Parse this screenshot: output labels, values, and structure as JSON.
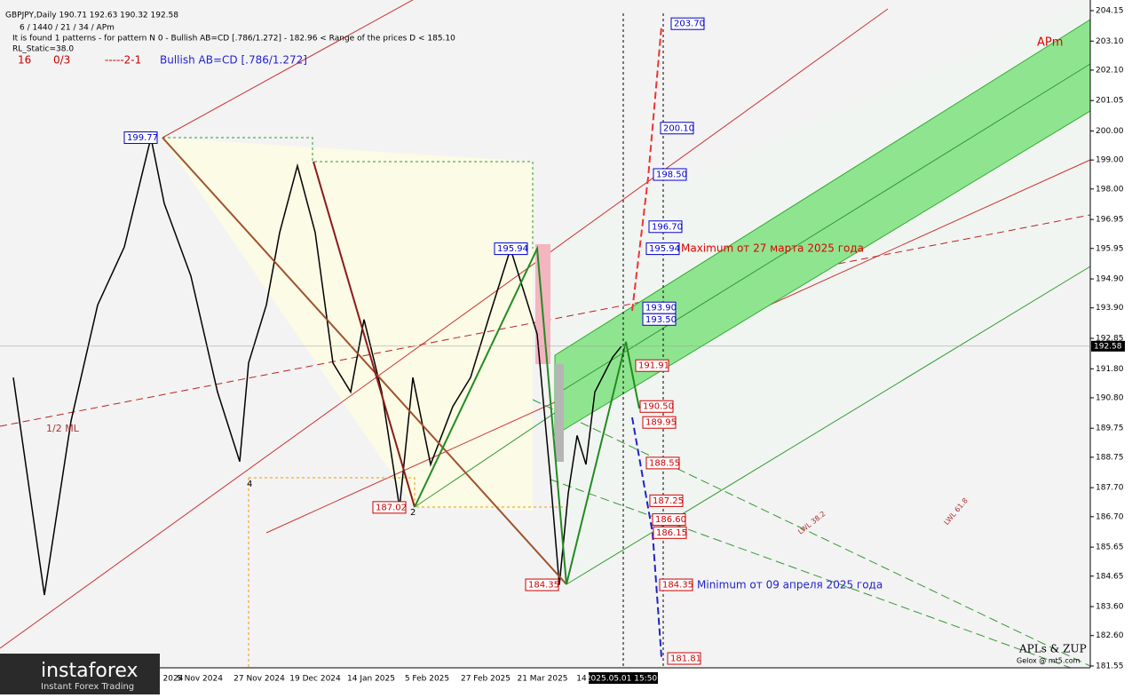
{
  "chart_data": {
    "type": "line",
    "header": "GBPJPY,Daily  190.71 192.63 190.32 192.58",
    "info_lines": [
      "6 / 1440 / 21 / 34 / APm",
      "It is found 1 patterns  -  for pattern N 0 - Bullish AB=CD [.786/1.272] - 182.96 < Range of the prices D < 185.10",
      "RL_Static=38.0"
    ],
    "status": [
      "16",
      "0/3",
      "-----2-1",
      "Bullish AB=CD [.786/1.272]"
    ],
    "corner_label": "APm",
    "annotations": [
      "Maximum от 27 марта 2025 года",
      "Minimum от 09 апреля 2025 года",
      "1/2 ML",
      "4",
      "2",
      "LWL 38.2",
      "LWL 61.8"
    ],
    "credits": [
      "APLs & ZUP",
      "Gelox @ mt5.com"
    ],
    "logo": [
      "instaforex",
      "Instant Forex Trading"
    ],
    "x_labels": [
      "2024",
      "5 Nov 2024",
      "27 Nov 2024",
      "19 Dec 2024",
      "14 Jan 2025",
      "5 Feb 2025",
      "27 Feb 2025",
      "21 Mar 2025",
      "14",
      "2025.05.01 15:50"
    ],
    "x": [
      1,
      8,
      14,
      20,
      26,
      32,
      35,
      41,
      47,
      52,
      54,
      58,
      61,
      65,
      69,
      73,
      77,
      80,
      84,
      88,
      91,
      95,
      100,
      104,
      108,
      113,
      119,
      122,
      124,
      126,
      128,
      130,
      132,
      136,
      138
    ],
    "series": [
      {
        "name": "GBPJPY",
        "color": "#000000",
        "values": [
          191.5,
          184,
          190,
          194,
          196,
          199.77,
          197.5,
          195,
          191,
          188.6,
          192,
          194,
          196.5,
          198.8,
          196.5,
          192,
          191,
          193.5,
          191,
          187.02,
          191.5,
          188.5,
          190.5,
          191.5,
          193.5,
          195.94,
          193,
          188,
          184.35,
          187.5,
          189.5,
          188.5,
          191,
          192.2,
          192.58
        ]
      }
    ],
    "xlim": [
      -2,
      243.6
    ],
    "ylim": [
      181.55,
      204.15
    ],
    "yticks": [
      204.15,
      {
        "value": 203.1,
        "label": "203.10"
      },
      {
        "value": 202.1,
        "label": "202.10"
      },
      201.05,
      {
        "value": 200,
        "label": "200.00"
      },
      {
        "value": 199,
        "label": "199.00"
      },
      {
        "value": 198,
        "label": "198.00"
      },
      196.95,
      195.95,
      {
        "value": 194.9,
        "label": "194.90"
      },
      {
        "value": 193.9,
        "label": "193.90"
      },
      192.85,
      {
        "value": 191.8,
        "label": "191.80"
      },
      {
        "value": 190.8,
        "label": "190.80"
      },
      189.75,
      188.75,
      {
        "value": 187.7,
        "label": "187.70"
      },
      {
        "value": 186.7,
        "label": "186.70"
      },
      185.65,
      184.65,
      {
        "value": 183.6,
        "label": "183.60"
      },
      {
        "value": 182.6,
        "label": "182.60"
      },
      181.55
    ],
    "current_price": 192.58,
    "levels": [
      {
        "value": 203.7,
        "label": "203.70",
        "color": "#0000cc"
      },
      {
        "value": 200.1,
        "label": "200.10",
        "color": "#0000cc"
      },
      {
        "value": 198.5,
        "label": "198.50",
        "color": "#0000cc"
      },
      {
        "value": 196.7,
        "label": "196.70",
        "color": "#0000cc"
      },
      {
        "value": 195.94,
        "label": "195.94",
        "color": "#0000cc"
      },
      {
        "value": 193.9,
        "label": "193.90",
        "color": "#0000cc"
      },
      {
        "value": 193.5,
        "label": "193.50",
        "color": "#0000cc"
      },
      {
        "value": 191.91,
        "label": "191.91",
        "color": "#cc0000"
      },
      {
        "value": 190.5,
        "label": "190.50",
        "color": "#cc0000"
      },
      {
        "value": 189.95,
        "label": "189.95",
        "color": "#cc0000"
      },
      {
        "value": 188.55,
        "label": "188.55",
        "color": "#cc0000"
      },
      {
        "value": 187.25,
        "label": "187.25",
        "color": "#cc0000"
      },
      {
        "value": 186.6,
        "label": "186.60",
        "color": "#cc0000"
      },
      {
        "value": 186.15,
        "label": "186.15",
        "color": "#cc0000"
      },
      {
        "value": 184.35,
        "label": "184.35",
        "color": "#cc0000"
      },
      {
        "value": 181.81,
        "label": "181.81",
        "color": "#cc0000"
      },
      {
        "value": 199.77,
        "label": "199.77",
        "color": "#0000cc"
      },
      {
        "value": 195.94,
        "label": "195.94",
        "color": "#0000cc"
      },
      {
        "value": 187.02,
        "label": "187.02",
        "color": "#cc0000"
      },
      {
        "value": 184.35,
        "label": "184.35",
        "color": "#cc0000"
      }
    ]
  }
}
